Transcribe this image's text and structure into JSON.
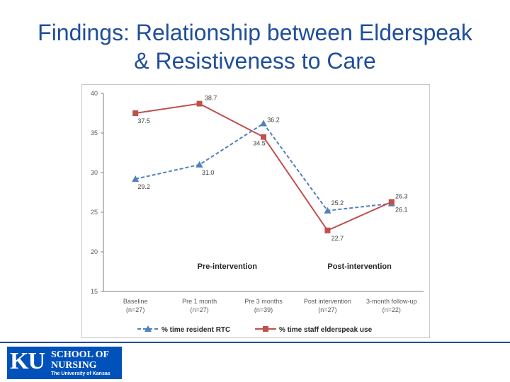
{
  "slide": {
    "title_line1": "Findings: Relationship between Elderspeak",
    "title_line2": "& Resistiveness to Care"
  },
  "chart_data": {
    "type": "line",
    "categories": [
      "Baseline",
      "Pre 1 month",
      "Pre 3 months",
      "Post intervention",
      "3-month follow-up"
    ],
    "category_n": [
      "(n=27)",
      "(n=27)",
      "(n=39)",
      "(n=27)",
      "(n=22)"
    ],
    "ylim": [
      15,
      40
    ],
    "yticks": [
      15,
      20,
      25,
      30,
      35,
      40
    ],
    "series": [
      {
        "name": "% time resident RTC",
        "values": [
          29.2,
          31.0,
          36.2,
          25.2,
          26.1
        ],
        "color": "#4f81bd",
        "dash": "dashed",
        "marker": "triangle"
      },
      {
        "name": "% time staff elderspeak use",
        "values": [
          37.5,
          38.7,
          34.5,
          22.7,
          26.3
        ],
        "color": "#c0504d",
        "dash": "solid",
        "marker": "square"
      }
    ],
    "data_labels": [
      [
        "29.2",
        "31.0",
        "36.2",
        "25.2",
        "26.1"
      ],
      [
        "37.5",
        "38.7",
        "34.5",
        "22.7",
        "26.3"
      ]
    ],
    "annotations": [
      "Pre-intervention",
      "Post-intervention"
    ],
    "legend_position": "bottom",
    "grid": false
  },
  "footer": {
    "logo_ku": "KU",
    "logo_line1": "SCHOOL OF",
    "logo_line2": "NURSING",
    "logo_line3": "The University of Kansas"
  }
}
